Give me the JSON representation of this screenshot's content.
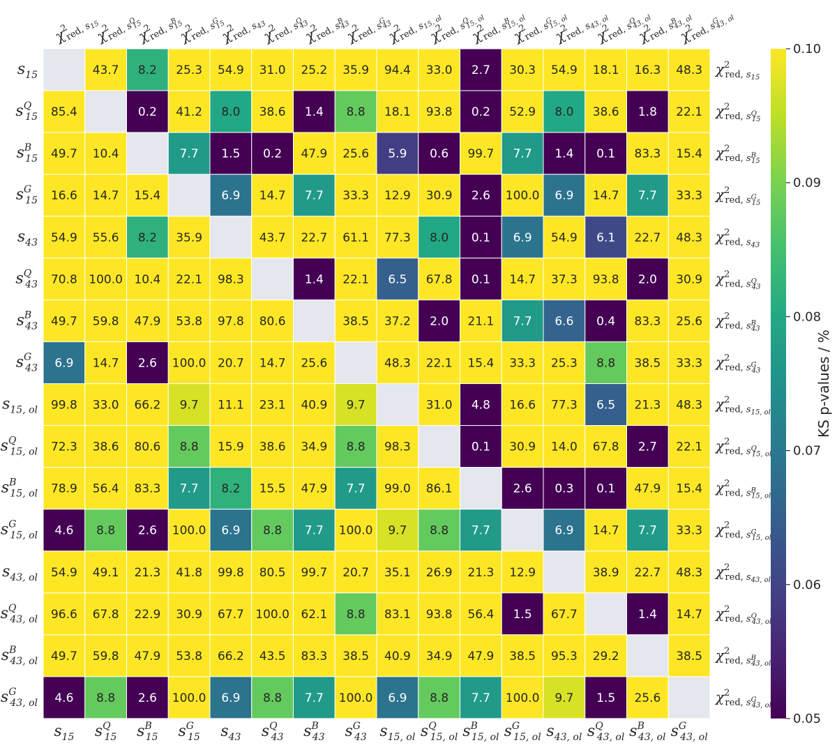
{
  "chart_data": {
    "type": "heatmap",
    "colorbar": {
      "label": "KS p-values / %",
      "range": [
        0.05,
        0.1
      ],
      "ticks": [
        "0.05",
        "0.06",
        "0.07",
        "0.08",
        "0.09",
        "0.10"
      ],
      "colormap": "viridis"
    },
    "row_labels": [
      {
        "base": "s",
        "sub": "15",
        "sup": ""
      },
      {
        "base": "s",
        "sub": "15",
        "sup": "Q"
      },
      {
        "base": "s",
        "sub": "15",
        "sup": "B"
      },
      {
        "base": "s",
        "sub": "15",
        "sup": "G"
      },
      {
        "base": "s",
        "sub": "43",
        "sup": ""
      },
      {
        "base": "s",
        "sub": "43",
        "sup": "Q"
      },
      {
        "base": "s",
        "sub": "43",
        "sup": "B"
      },
      {
        "base": "s",
        "sub": "43",
        "sup": "G"
      },
      {
        "base": "s",
        "sub": "15, ol",
        "sup": ""
      },
      {
        "base": "s",
        "sub": "15, ol",
        "sup": "Q"
      },
      {
        "base": "s",
        "sub": "15, ol",
        "sup": "B"
      },
      {
        "base": "s",
        "sub": "15, ol",
        "sup": "G"
      },
      {
        "base": "s",
        "sub": "43, ol",
        "sup": ""
      },
      {
        "base": "s",
        "sub": "43, ol",
        "sup": "Q"
      },
      {
        "base": "s",
        "sub": "43, ol",
        "sup": "B"
      },
      {
        "base": "s",
        "sub": "43, ol",
        "sup": "G"
      }
    ],
    "chi_label": {
      "base": "χ",
      "sup": "2",
      "sub_prefix": "red, "
    },
    "values": [
      [
        null,
        43.7,
        8.2,
        25.3,
        54.9,
        31.0,
        25.2,
        35.9,
        94.4,
        33.0,
        2.7,
        30.3,
        54.9,
        18.1,
        16.3,
        48.3
      ],
      [
        85.4,
        null,
        0.2,
        41.2,
        8.0,
        38.6,
        1.4,
        8.8,
        18.1,
        93.8,
        0.2,
        52.9,
        8.0,
        38.6,
        1.8,
        22.1
      ],
      [
        49.7,
        10.4,
        null,
        7.7,
        1.5,
        0.2,
        47.9,
        25.6,
        5.9,
        0.6,
        99.7,
        7.7,
        1.4,
        0.1,
        83.3,
        15.4
      ],
      [
        16.6,
        14.7,
        15.4,
        null,
        6.9,
        14.7,
        7.7,
        33.3,
        12.9,
        30.9,
        2.6,
        100.0,
        6.9,
        14.7,
        7.7,
        33.3
      ],
      [
        54.9,
        55.6,
        8.2,
        35.9,
        null,
        43.7,
        22.7,
        61.1,
        77.3,
        8.0,
        0.1,
        6.9,
        54.9,
        6.1,
        22.7,
        48.3
      ],
      [
        70.8,
        100.0,
        10.4,
        22.1,
        98.3,
        null,
        1.4,
        22.1,
        6.5,
        67.8,
        0.1,
        14.7,
        37.3,
        93.8,
        2.0,
        30.9
      ],
      [
        49.7,
        59.8,
        47.9,
        53.8,
        97.8,
        80.6,
        null,
        38.5,
        37.2,
        2.0,
        21.1,
        7.7,
        6.6,
        0.4,
        83.3,
        25.6
      ],
      [
        6.9,
        14.7,
        2.6,
        100.0,
        20.7,
        14.7,
        25.6,
        null,
        48.3,
        22.1,
        15.4,
        33.3,
        25.3,
        8.8,
        38.5,
        33.3
      ],
      [
        99.8,
        33.0,
        66.2,
        9.7,
        11.1,
        23.1,
        40.9,
        9.7,
        null,
        31.0,
        4.8,
        16.6,
        77.3,
        6.5,
        21.3,
        48.3
      ],
      [
        72.3,
        38.6,
        80.6,
        8.8,
        15.9,
        38.6,
        34.9,
        8.8,
        98.3,
        null,
        0.1,
        30.9,
        14.0,
        67.8,
        2.7,
        22.1
      ],
      [
        78.9,
        56.4,
        83.3,
        7.7,
        8.2,
        15.5,
        47.9,
        7.7,
        99.0,
        86.1,
        null,
        2.6,
        0.3,
        0.1,
        47.9,
        15.4
      ],
      [
        4.6,
        8.8,
        2.6,
        100.0,
        6.9,
        8.8,
        7.7,
        100.0,
        9.7,
        8.8,
        7.7,
        null,
        6.9,
        14.7,
        7.7,
        33.3
      ],
      [
        54.9,
        49.1,
        21.3,
        41.8,
        99.8,
        80.5,
        99.7,
        20.7,
        35.1,
        26.9,
        21.3,
        12.9,
        null,
        38.9,
        22.7,
        48.3
      ],
      [
        96.6,
        67.8,
        22.9,
        30.9,
        67.7,
        100.0,
        62.1,
        8.8,
        83.1,
        93.8,
        56.4,
        1.5,
        67.7,
        null,
        1.4,
        14.7
      ],
      [
        49.7,
        59.8,
        47.9,
        53.8,
        66.2,
        43.5,
        83.3,
        38.5,
        40.9,
        34.9,
        47.9,
        38.5,
        95.3,
        29.2,
        null,
        38.5
      ],
      [
        4.6,
        8.8,
        2.6,
        100.0,
        6.9,
        8.8,
        7.7,
        100.0,
        6.9,
        8.8,
        7.7,
        100.0,
        9.7,
        1.5,
        25.6,
        null
      ]
    ],
    "missing_color": "#e5e7ef",
    "grid": true
  }
}
